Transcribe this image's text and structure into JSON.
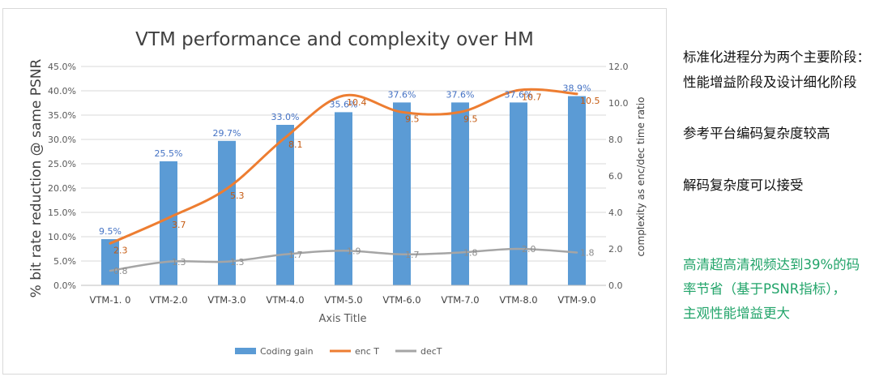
{
  "chart_data": {
    "type": "bar",
    "title": "VTM performance and complexity over HM",
    "xlabel": "Axis Title",
    "ylabel": "% bit rate reduction @ same PSNR",
    "y2label": "complexity as enc/dec time ratio",
    "categories": [
      "VTM-1. 0",
      "VTM-2.0",
      "VTM-3.0",
      "VTM-4.0",
      "VTM-5.0",
      "VTM-6.0",
      "VTM-7.0",
      "VTM-8.0",
      "VTM-9.0"
    ],
    "ylim": [
      0,
      45
    ],
    "y_ticks": [
      "0.0%",
      "5.0%",
      "10.0%",
      "15.0%",
      "20.0%",
      "25.0%",
      "30.0%",
      "35.0%",
      "40.0%",
      "45.0%"
    ],
    "y2lim": [
      0,
      12
    ],
    "y2_ticks": [
      "0.0",
      "2.0",
      "4.0",
      "6.0",
      "8.0",
      "10.0",
      "12.0"
    ],
    "grid": true,
    "legend_position": "bottom",
    "series": [
      {
        "name": "Coding gain",
        "kind": "bar",
        "axis": "left",
        "color": "#5b9bd5",
        "values": [
          9.5,
          25.5,
          29.7,
          33.0,
          35.6,
          37.6,
          37.6,
          37.6,
          38.9
        ],
        "labels": [
          "9.5%",
          "25.5%",
          "29.7%",
          "33.0%",
          "35.6%",
          "37.6%",
          "37.6%",
          "37.6%",
          "38.9%"
        ]
      },
      {
        "name": "enc T",
        "kind": "line",
        "axis": "right",
        "color": "#ed7d31",
        "values": [
          2.3,
          3.7,
          5.3,
          8.1,
          10.4,
          9.5,
          9.5,
          10.7,
          10.5
        ],
        "labels": [
          "2.3",
          "3.7",
          "5.3",
          "8.1",
          "10.4",
          "9.5",
          "9.5",
          "10.7",
          "10.5"
        ]
      },
      {
        "name": "decT",
        "kind": "line",
        "axis": "right",
        "color": "#a5a5a5",
        "values": [
          0.8,
          1.3,
          1.3,
          1.7,
          1.9,
          1.7,
          1.8,
          2.0,
          1.8
        ],
        "labels": [
          "0.8",
          "1.3",
          "1.3",
          "1.7",
          "1.9",
          "1.7",
          "1.8",
          "2.0",
          "1.8"
        ]
      }
    ]
  },
  "side_notes": {
    "line1": "标准化进程分为两个主要阶段：",
    "line2": "性能增益阶段及设计细化阶段",
    "line3": "参考平台编码复杂度较高",
    "line4": "解码复杂度可以接受",
    "highlight1": "高清超高清视频达到39%的码",
    "highlight2": "率节省（基于PSNR指标），",
    "highlight3": "主观性能增益更大",
    "highlight_color": "#22a46a"
  }
}
